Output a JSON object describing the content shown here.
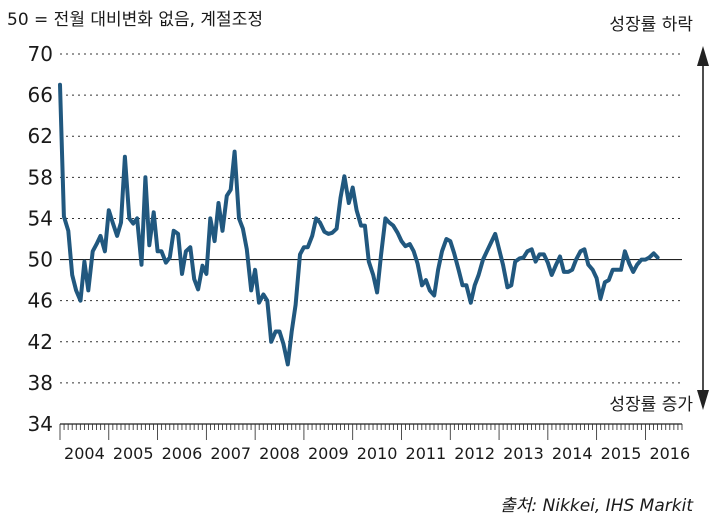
{
  "chart_data": {
    "type": "line",
    "note": "50 = 전월 대비변화 없음, 계절조정",
    "annotation_top": "성장률 하락",
    "annotation_bottom": "성장률 증가",
    "source": "출처: Nikkei, IHS Markit",
    "ylim": [
      34,
      70
    ],
    "y_ticks": [
      34,
      38,
      42,
      46,
      50,
      54,
      58,
      62,
      66,
      70
    ],
    "reference_line": 50,
    "x_labels": [
      "2004",
      "2005",
      "2006",
      "2007",
      "2008",
      "2009",
      "2010",
      "2011",
      "2012",
      "2013",
      "2014",
      "2015",
      "2016"
    ],
    "x_range": [
      2004.0,
      2016.75
    ],
    "grid": true,
    "line_color": "#21587f",
    "series": [
      {
        "values": [
          [
            2004.0,
            67.0
          ],
          [
            2004.08,
            54.2
          ],
          [
            2004.17,
            52.8
          ],
          [
            2004.25,
            48.5
          ],
          [
            2004.33,
            47.0
          ],
          [
            2004.42,
            46.0
          ],
          [
            2004.5,
            49.8
          ],
          [
            2004.58,
            47.0
          ],
          [
            2004.67,
            50.8
          ],
          [
            2004.75,
            51.5
          ],
          [
            2004.83,
            52.3
          ],
          [
            2004.92,
            50.8
          ],
          [
            2005.0,
            54.8
          ],
          [
            2005.08,
            53.6
          ],
          [
            2005.17,
            52.3
          ],
          [
            2005.25,
            53.6
          ],
          [
            2005.33,
            60.0
          ],
          [
            2005.42,
            54.0
          ],
          [
            2005.5,
            53.5
          ],
          [
            2005.58,
            54.0
          ],
          [
            2005.67,
            49.5
          ],
          [
            2005.75,
            58.0
          ],
          [
            2005.83,
            51.4
          ],
          [
            2005.92,
            54.6
          ],
          [
            2006.0,
            50.8
          ],
          [
            2006.08,
            50.8
          ],
          [
            2006.17,
            49.7
          ],
          [
            2006.25,
            50.2
          ],
          [
            2006.33,
            52.8
          ],
          [
            2006.42,
            52.5
          ],
          [
            2006.5,
            48.6
          ],
          [
            2006.58,
            50.8
          ],
          [
            2006.67,
            51.2
          ],
          [
            2006.75,
            48.1
          ],
          [
            2006.83,
            47.1
          ],
          [
            2006.92,
            49.4
          ],
          [
            2007.0,
            48.6
          ],
          [
            2007.08,
            54.0
          ],
          [
            2007.17,
            51.8
          ],
          [
            2007.25,
            55.5
          ],
          [
            2007.33,
            52.8
          ],
          [
            2007.42,
            56.2
          ],
          [
            2007.5,
            56.8
          ],
          [
            2007.58,
            60.5
          ],
          [
            2007.67,
            54.0
          ],
          [
            2007.75,
            53.0
          ],
          [
            2007.83,
            51.0
          ],
          [
            2007.92,
            47.0
          ],
          [
            2008.0,
            49.0
          ],
          [
            2008.08,
            45.8
          ],
          [
            2008.17,
            46.6
          ],
          [
            2008.25,
            46.0
          ],
          [
            2008.33,
            42.0
          ],
          [
            2008.42,
            43.0
          ],
          [
            2008.5,
            43.0
          ],
          [
            2008.58,
            41.8
          ],
          [
            2008.67,
            39.8
          ],
          [
            2008.75,
            43.0
          ],
          [
            2008.83,
            45.6
          ],
          [
            2008.92,
            50.5
          ],
          [
            2009.0,
            51.2
          ],
          [
            2009.08,
            51.2
          ],
          [
            2009.17,
            52.3
          ],
          [
            2009.25,
            54.0
          ],
          [
            2009.33,
            53.6
          ],
          [
            2009.42,
            52.7
          ],
          [
            2009.5,
            52.5
          ],
          [
            2009.58,
            52.6
          ],
          [
            2009.67,
            53.0
          ],
          [
            2009.75,
            56.0
          ],
          [
            2009.83,
            58.1
          ],
          [
            2009.92,
            55.5
          ],
          [
            2010.0,
            57.0
          ],
          [
            2010.08,
            54.8
          ],
          [
            2010.17,
            53.3
          ],
          [
            2010.25,
            53.3
          ],
          [
            2010.33,
            49.8
          ],
          [
            2010.42,
            48.5
          ],
          [
            2010.5,
            46.8
          ],
          [
            2010.58,
            50.4
          ],
          [
            2010.67,
            54.0
          ],
          [
            2010.75,
            53.6
          ],
          [
            2010.83,
            53.3
          ],
          [
            2010.92,
            52.6
          ],
          [
            2011.0,
            51.8
          ],
          [
            2011.08,
            51.3
          ],
          [
            2011.17,
            51.5
          ],
          [
            2011.25,
            50.8
          ],
          [
            2011.33,
            49.6
          ],
          [
            2011.42,
            47.5
          ],
          [
            2011.5,
            48.0
          ],
          [
            2011.58,
            47.0
          ],
          [
            2011.67,
            46.5
          ],
          [
            2011.75,
            49.0
          ],
          [
            2011.83,
            50.8
          ],
          [
            2011.92,
            52.0
          ],
          [
            2012.0,
            51.8
          ],
          [
            2012.08,
            50.6
          ],
          [
            2012.17,
            49.0
          ],
          [
            2012.25,
            47.5
          ],
          [
            2012.33,
            47.5
          ],
          [
            2012.42,
            45.8
          ],
          [
            2012.5,
            47.5
          ],
          [
            2012.58,
            48.5
          ],
          [
            2012.67,
            50.0
          ],
          [
            2012.75,
            50.8
          ],
          [
            2012.83,
            51.6
          ],
          [
            2012.92,
            52.5
          ],
          [
            2013.0,
            51.0
          ],
          [
            2013.08,
            49.5
          ],
          [
            2013.17,
            47.3
          ],
          [
            2013.25,
            47.5
          ],
          [
            2013.33,
            49.8
          ],
          [
            2013.42,
            50.1
          ],
          [
            2013.5,
            50.2
          ],
          [
            2013.58,
            50.8
          ],
          [
            2013.67,
            51.0
          ],
          [
            2013.75,
            49.8
          ],
          [
            2013.83,
            50.5
          ],
          [
            2013.92,
            50.5
          ],
          [
            2014.0,
            49.7
          ],
          [
            2014.08,
            48.5
          ],
          [
            2014.17,
            49.5
          ],
          [
            2014.25,
            50.3
          ],
          [
            2014.33,
            48.8
          ],
          [
            2014.42,
            48.8
          ],
          [
            2014.5,
            49.0
          ],
          [
            2014.58,
            50.0
          ],
          [
            2014.67,
            50.8
          ],
          [
            2014.75,
            51.0
          ],
          [
            2014.83,
            49.5
          ],
          [
            2014.92,
            49.0
          ],
          [
            2015.0,
            48.2
          ],
          [
            2015.08,
            46.2
          ],
          [
            2015.17,
            47.8
          ],
          [
            2015.25,
            48.0
          ],
          [
            2015.33,
            49.0
          ],
          [
            2015.42,
            49.0
          ],
          [
            2015.5,
            49.0
          ],
          [
            2015.58,
            50.8
          ],
          [
            2015.67,
            49.6
          ],
          [
            2015.75,
            48.8
          ],
          [
            2015.83,
            49.5
          ],
          [
            2015.92,
            50.0
          ],
          [
            2016.0,
            50.0
          ],
          [
            2016.08,
            50.2
          ],
          [
            2016.17,
            50.6
          ],
          [
            2016.25,
            50.2
          ]
        ]
      }
    ]
  }
}
